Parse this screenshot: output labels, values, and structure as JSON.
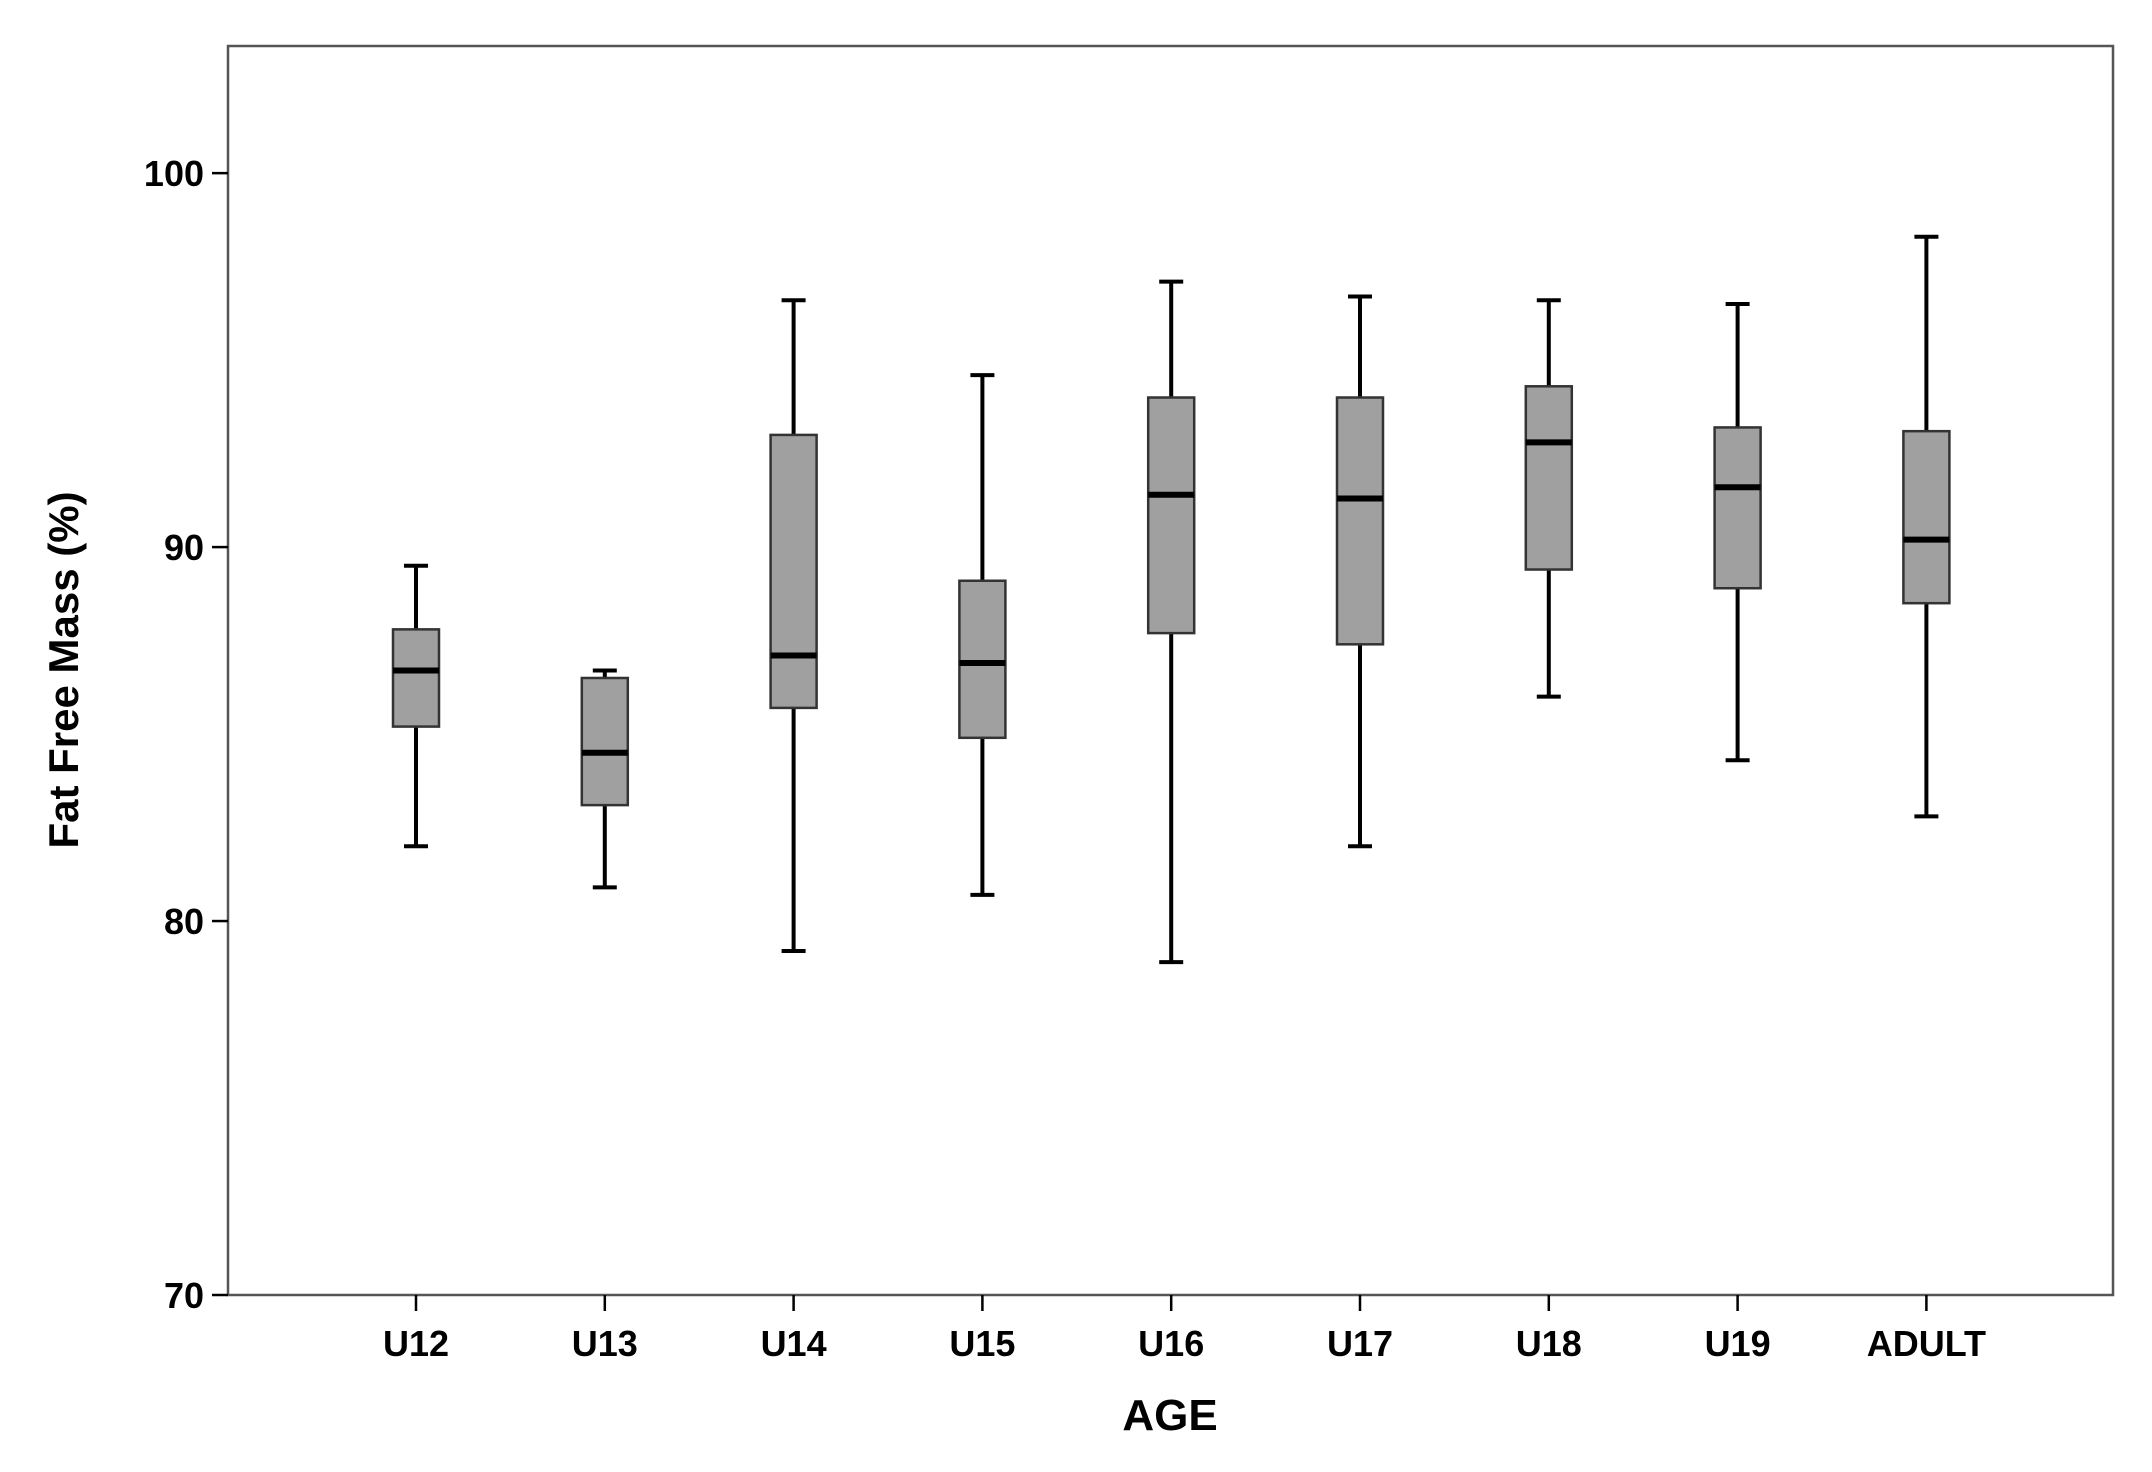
{
  "chart_data": {
    "type": "boxplot",
    "xlabel": "AGE",
    "ylabel": "Fat Free Mass (%)",
    "ylim": [
      70,
      103.4
    ],
    "yticks": [
      70,
      80,
      90,
      100
    ],
    "grid": false,
    "legend": "none",
    "box_color": "#a0a0a0",
    "categories": [
      "U12",
      "U13",
      "U14",
      "U15",
      "U16",
      "U17",
      "U18",
      "U19",
      "ADULT"
    ],
    "boxes": [
      {
        "category": "U12",
        "min": 82.0,
        "q1": 85.2,
        "median": 86.7,
        "q3": 87.8,
        "max": 89.5
      },
      {
        "category": "U13",
        "min": 80.9,
        "q1": 83.1,
        "median": 84.5,
        "q3": 86.5,
        "max": 86.7
      },
      {
        "category": "U14",
        "min": 79.2,
        "q1": 85.7,
        "median": 87.1,
        "q3": 93.0,
        "max": 96.6
      },
      {
        "category": "U15",
        "min": 80.7,
        "q1": 84.9,
        "median": 86.9,
        "q3": 89.1,
        "max": 94.6
      },
      {
        "category": "U16",
        "min": 78.9,
        "q1": 87.7,
        "median": 91.4,
        "q3": 94.0,
        "max": 97.1
      },
      {
        "category": "U17",
        "min": 82.0,
        "q1": 87.4,
        "median": 91.3,
        "q3": 94.0,
        "max": 96.7
      },
      {
        "category": "U18",
        "min": 86.0,
        "q1": 89.4,
        "median": 92.8,
        "q3": 94.3,
        "max": 96.6
      },
      {
        "category": "U19",
        "min": 84.3,
        "q1": 88.9,
        "median": 91.6,
        "q3": 93.2,
        "max": 96.5
      },
      {
        "category": "ADULT",
        "min": 82.8,
        "q1": 88.5,
        "median": 90.2,
        "q3": 93.1,
        "max": 98.3
      }
    ]
  }
}
